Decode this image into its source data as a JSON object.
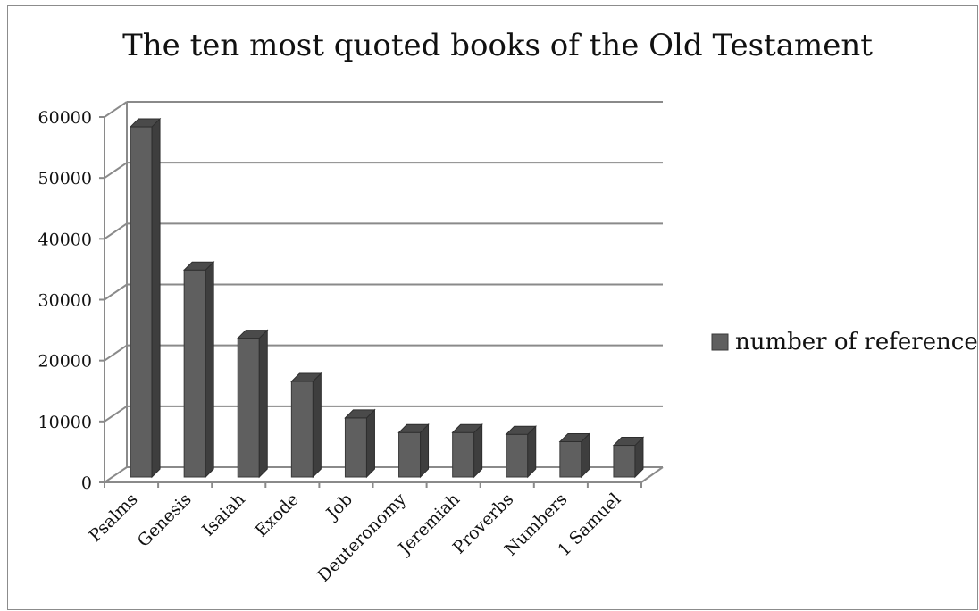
{
  "chart_data": {
    "type": "bar",
    "title": "The ten most quoted books of the Old Testament",
    "categories": [
      "Psalms",
      "Genesis",
      "Isaiah",
      "Exode",
      "Job",
      "Deuteronomy",
      "Jeremiah",
      "Proverbs",
      "Numbers",
      "1 Samuel"
    ],
    "series": [
      {
        "name": "number of references",
        "values": [
          57500,
          34000,
          22800,
          15700,
          9700,
          7300,
          7300,
          7000,
          5800,
          5200
        ]
      }
    ],
    "ylim": [
      0,
      60000
    ],
    "yticks": [
      "0",
      "10000",
      "20000",
      "30000",
      "40000",
      "50000",
      "60000"
    ],
    "xlabel": "",
    "ylabel": "",
    "grid": true,
    "legend_position": "right",
    "style": "3d",
    "colors": {
      "bar": "#5f5f5f",
      "bar_side": "#3e3e3e",
      "bar_top": "#4a4a4a",
      "grid": "#8a8a8a",
      "axis": "#8a8a8a"
    }
  }
}
